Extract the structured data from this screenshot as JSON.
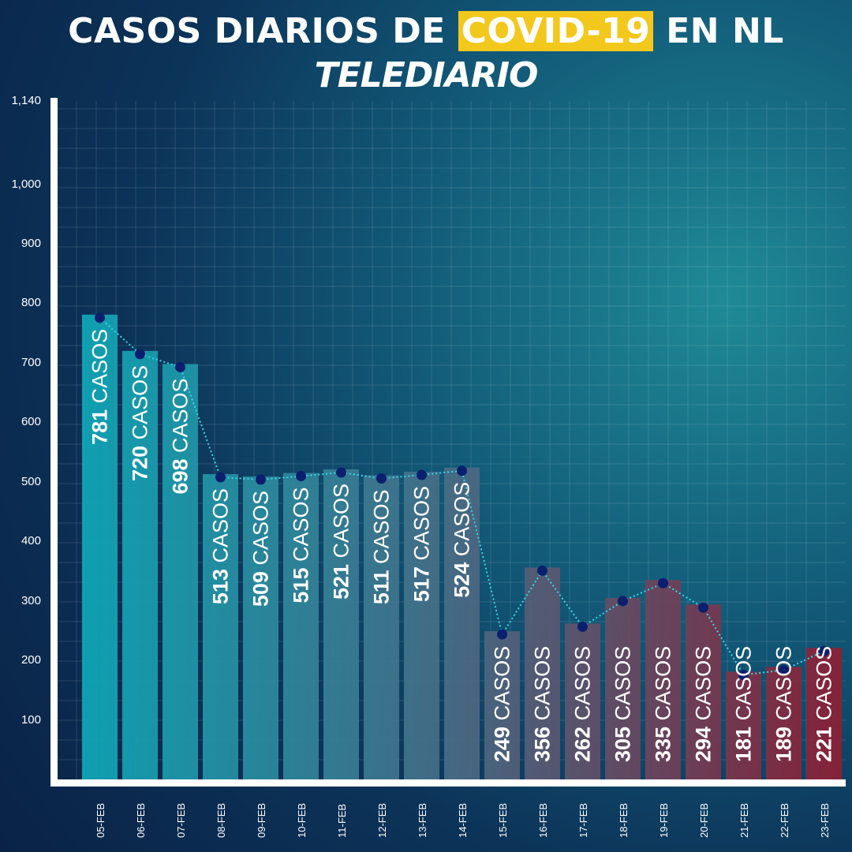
{
  "header": {
    "title_pre": "CASOS DIARIOS DE ",
    "title_highlight": "COVID-19",
    "title_post": " EN NL",
    "brand": "TELEDIARIO"
  },
  "colors": {
    "highlight": "#f2c81c",
    "bar_start": "#0fa9b8",
    "bar_mid": "#4a6a84",
    "bar_end": "#8e1f34",
    "line": "#38d7e6",
    "dot": "#0a1f6e"
  },
  "chart_data": {
    "type": "bar",
    "title": "CASOS DIARIOS DE COVID-19 EN NL",
    "categories": [
      "05-FEB",
      "06-FEB",
      "07-FEB",
      "08-FEB",
      "09-FEB",
      "10-FEB",
      "11-FEB",
      "12-FEB",
      "13-FEB",
      "14-FEB",
      "15-FEB",
      "16-FEB",
      "17-FEB",
      "18-FEB",
      "19-FEB",
      "20-FEB",
      "21-FEB",
      "22-FEB",
      "23-FEB"
    ],
    "values": [
      781,
      720,
      698,
      513,
      509,
      515,
      521,
      511,
      517,
      524,
      249,
      356,
      262,
      305,
      335,
      294,
      181,
      189,
      221
    ],
    "value_labels": [
      "781 CASOS",
      "720 CASOS",
      "698 CASOS",
      "513 CASOS",
      "509 CASOS",
      "515 CASOS",
      "521 CASOS",
      "511 CASOS",
      "517 CASOS",
      "524 CASOS",
      "249 CASOS",
      "356 CASOS",
      "262 CASOS",
      "305 CASOS",
      "335 CASOS",
      "294 CASOS",
      "181 CASOS",
      "189 CASOS",
      "221 CASOS"
    ],
    "yticks": [
      100,
      200,
      300,
      400,
      500,
      600,
      700,
      800,
      900,
      1000,
      1140
    ],
    "ytick_labels": [
      "100",
      "200",
      "300",
      "400",
      "500",
      "600",
      "700",
      "800",
      "900",
      "1,000",
      "1,140"
    ],
    "ylim": [
      0,
      1140
    ],
    "grid": true,
    "overlay_line": true
  }
}
